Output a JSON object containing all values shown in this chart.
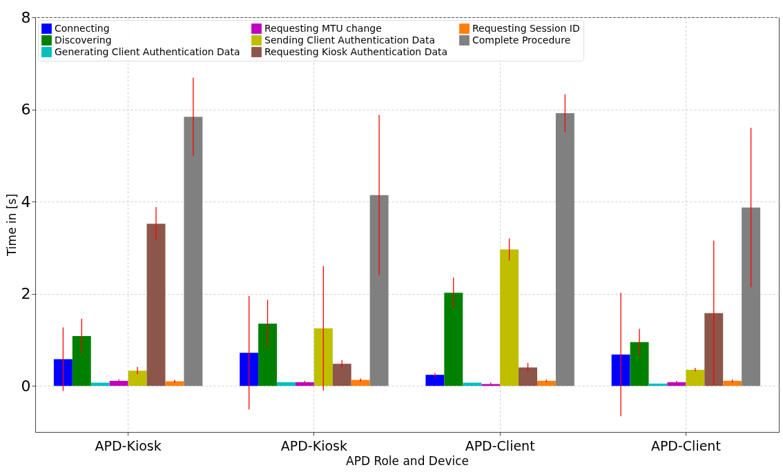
{
  "chart_data": {
    "type": "bar",
    "xlabel": "APD Role and Device",
    "ylabel": "Time in [s]",
    "categories": [
      "APD-Kiosk",
      "APD-Kiosk",
      "APD-Client",
      "APD-Client"
    ],
    "ylim": [
      -1,
      8
    ],
    "yticks": [
      0,
      2,
      4,
      6,
      8
    ],
    "grid": true,
    "legend": "top left",
    "series": [
      {
        "name": "Connecting",
        "color": "#0000ff",
        "values": [
          0.58,
          0.72,
          0.24,
          0.68
        ],
        "errors": [
          0.69,
          1.23,
          0.04,
          1.34
        ]
      },
      {
        "name": "Discovering",
        "color": "#008000",
        "values": [
          1.08,
          1.35,
          2.02,
          0.95
        ],
        "errors": [
          0.38,
          0.52,
          0.33,
          0.29
        ]
      },
      {
        "name": "Generating Client Authentication Data",
        "color": "#00bfbf",
        "values": [
          0.07,
          0.08,
          0.07,
          0.05
        ]
      },
      {
        "name": "Requesting MTU change",
        "color": "#bf00bf",
        "values": [
          0.11,
          0.08,
          0.04,
          0.08
        ],
        "errors": [
          0.03,
          0.03,
          0.03,
          0.03
        ]
      },
      {
        "name": "Sending Client Authentication Data",
        "color": "#bfbf00",
        "values": [
          0.33,
          1.25,
          2.96,
          0.35
        ],
        "errors": [
          0.08,
          1.35,
          0.24,
          0.04
        ]
      },
      {
        "name": "Requesting Kiosk Authentication Data",
        "color": "#8c564b",
        "values": [
          3.52,
          0.48,
          0.4,
          1.58
        ],
        "errors": [
          0.36,
          0.08,
          0.1,
          1.57
        ]
      },
      {
        "name": "Requesting Session ID",
        "color": "#ff7f0e",
        "values": [
          0.1,
          0.13,
          0.11,
          0.11
        ],
        "errors": [
          0.03,
          0.03,
          0.03,
          0.03
        ]
      },
      {
        "name": "Complete Procedure",
        "color": "#808080",
        "values": [
          5.84,
          4.14,
          5.92,
          3.87
        ],
        "errors": [
          0.85,
          1.74,
          0.41,
          1.73
        ]
      }
    ]
  }
}
